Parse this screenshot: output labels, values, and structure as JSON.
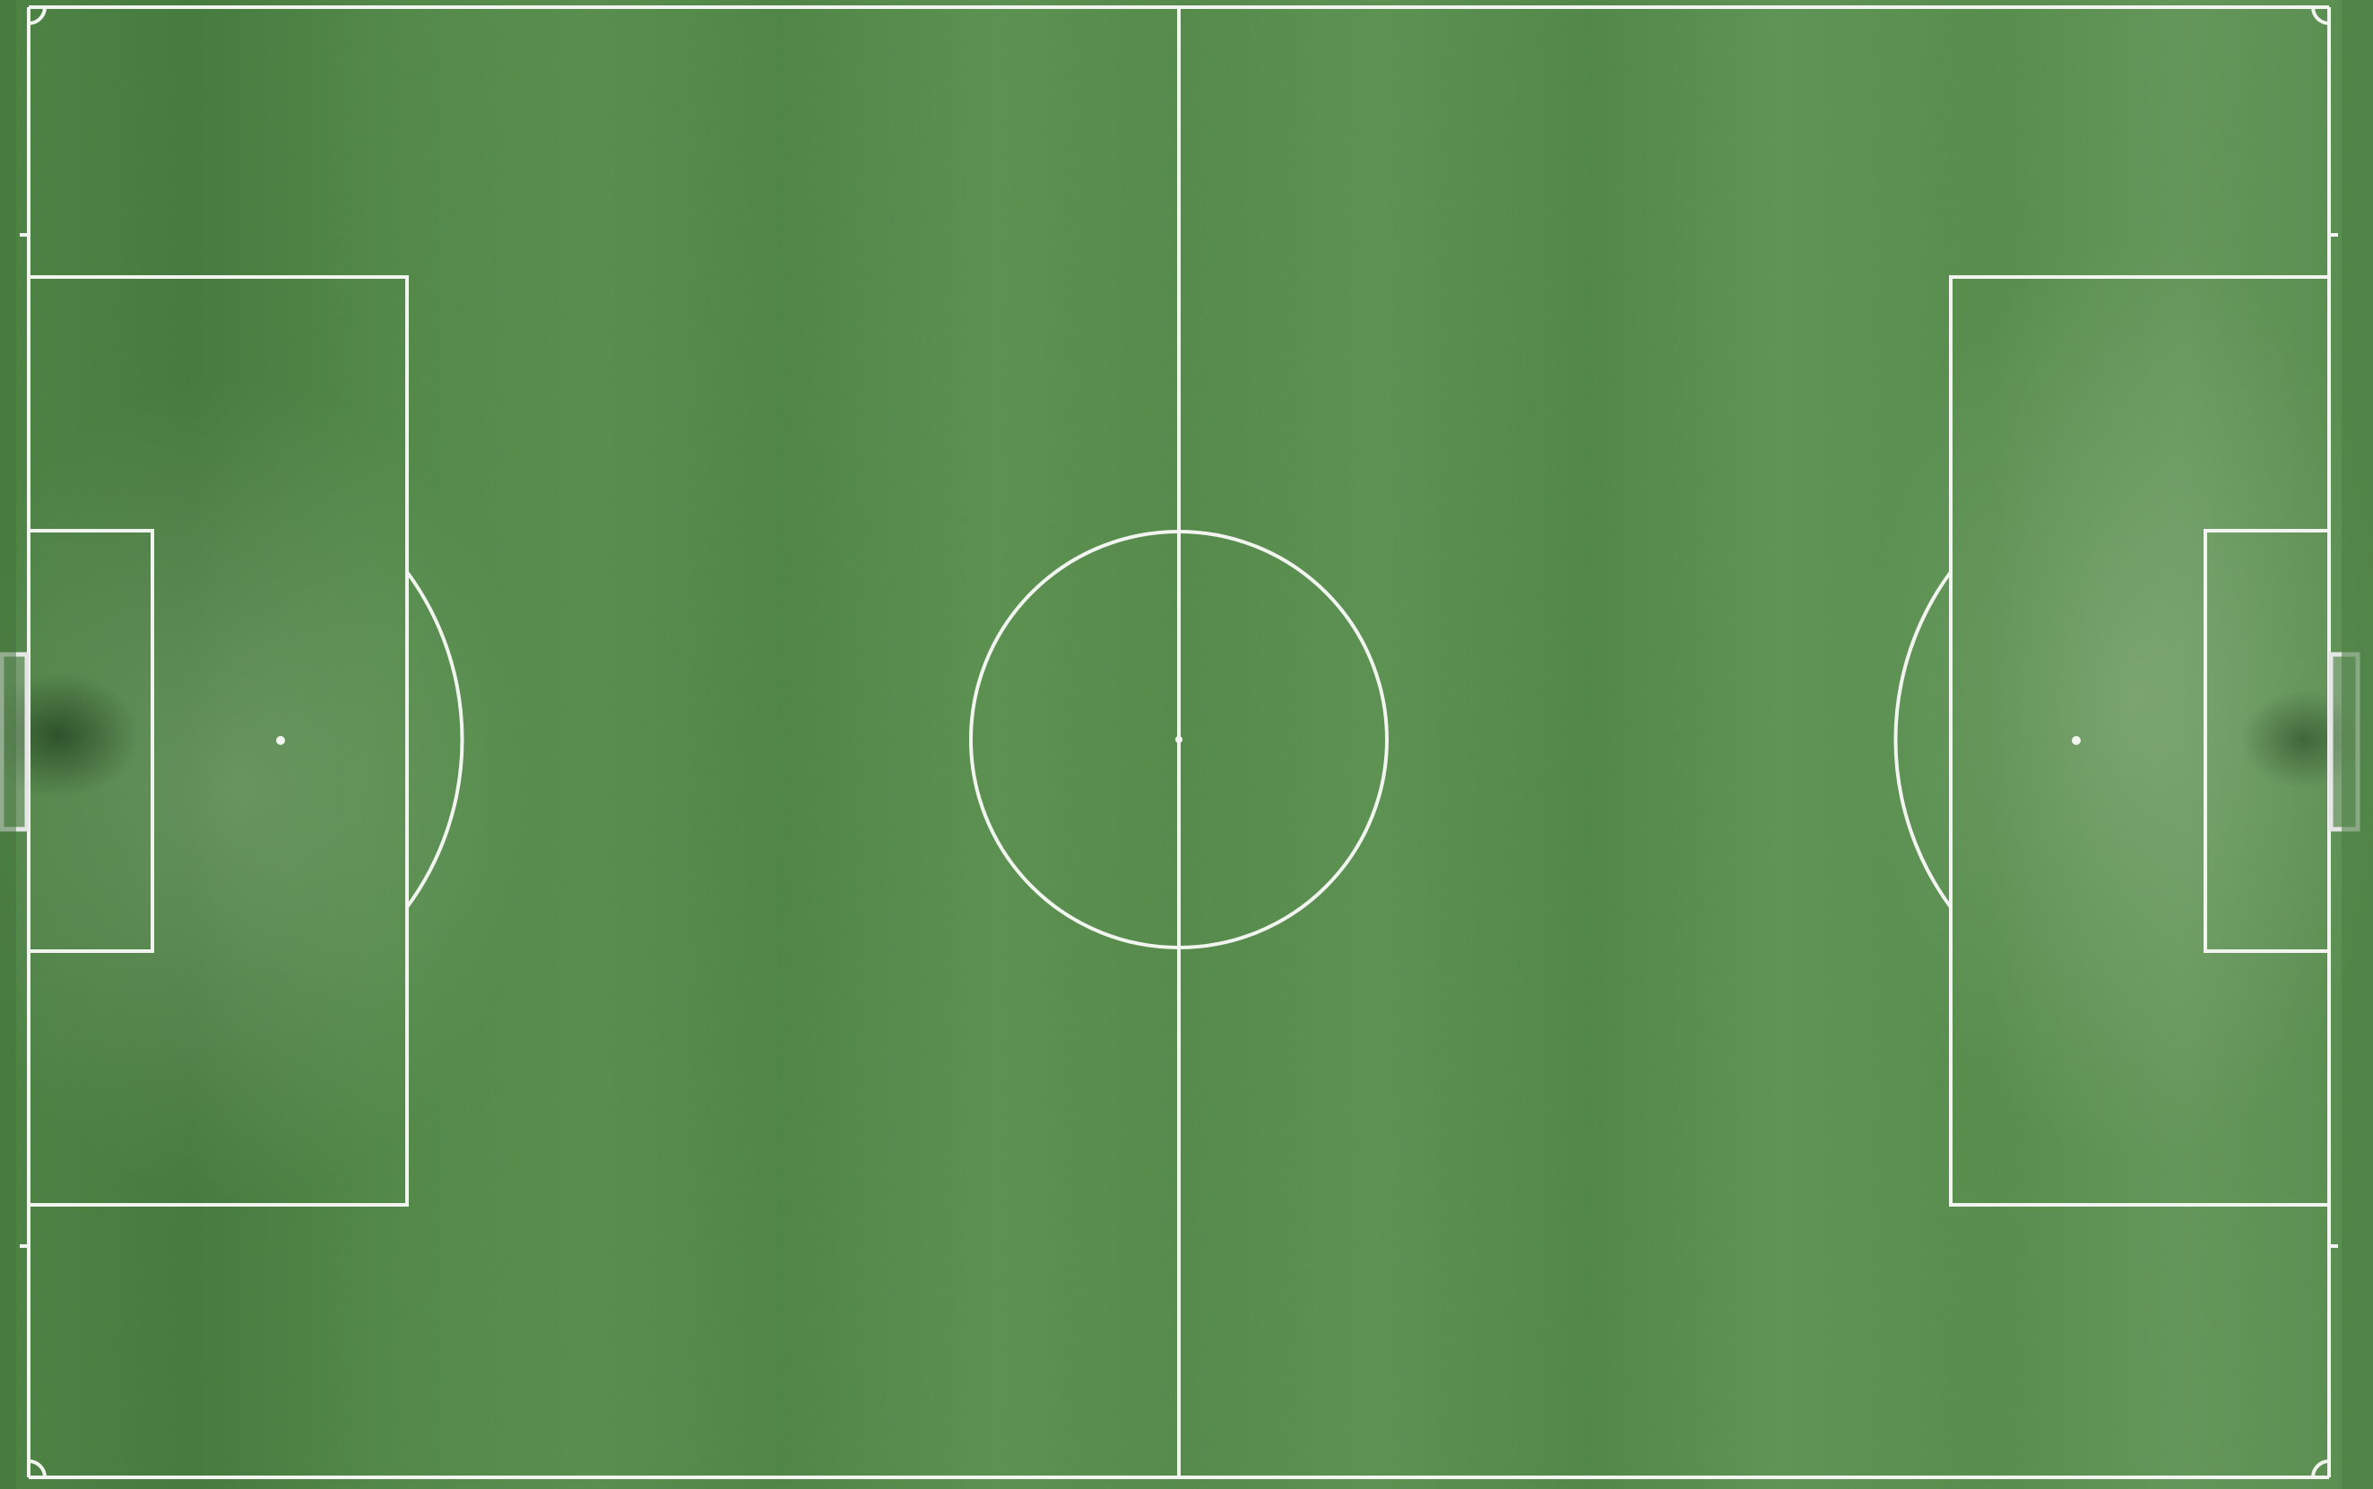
{
  "scene": {
    "subject": "soccer-pitch-aerial",
    "colors": {
      "grass_light": "#6f9e62",
      "grass_mid": "#5b8d4f",
      "grass_dark": "#3f7437",
      "grass_shadow": "#2f5c2c",
      "line_white": "#f2f4ef",
      "goal_frame": "#e6e6e6"
    },
    "markings": [
      "touchline-top",
      "touchline-bottom",
      "goal-line-left",
      "goal-line-right",
      "halfway-line",
      "center-circle",
      "center-spot",
      "penalty-area-left",
      "penalty-area-right",
      "goal-area-left",
      "goal-area-right",
      "penalty-spot-left",
      "penalty-spot-right",
      "penalty-arc-left",
      "penalty-arc-right",
      "corner-arc-top-left",
      "corner-arc-top-right",
      "corner-arc-bottom-left",
      "corner-arc-bottom-right",
      "goal-left",
      "goal-right"
    ]
  }
}
